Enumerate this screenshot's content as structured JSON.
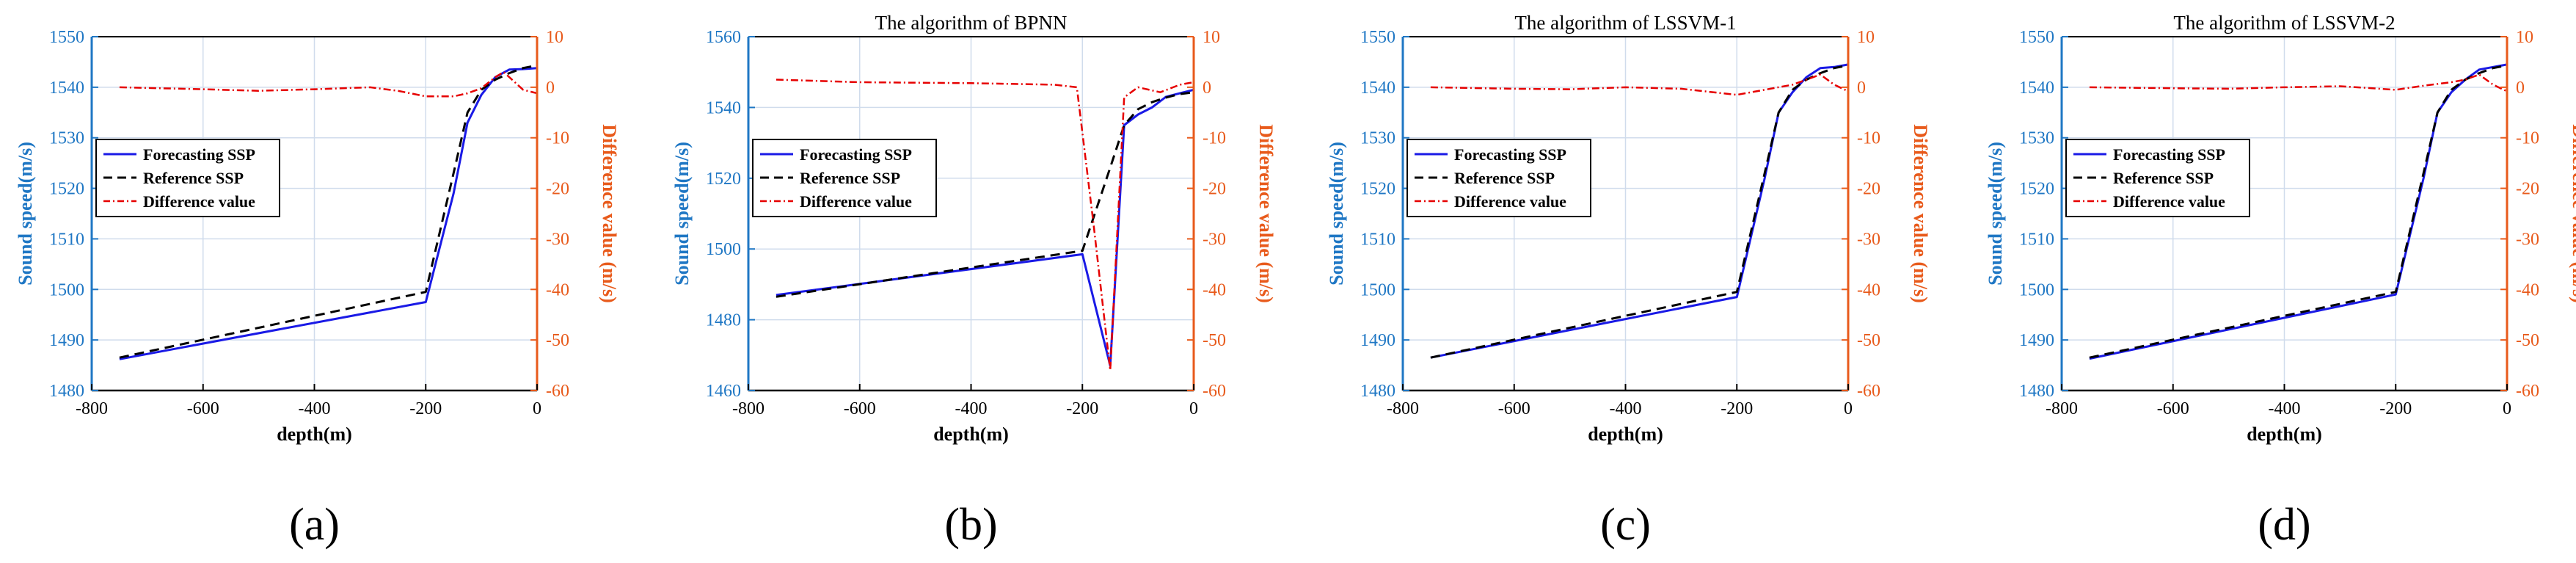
{
  "figure": {
    "colors": {
      "left_axis": "#1f77c4",
      "right_axis": "#e85a1b",
      "forecasting": "#1a1ae6",
      "reference": "#000000",
      "difference": "#e60000",
      "grid": "#d0dcec"
    }
  },
  "chart_data": [
    {
      "type": "line",
      "panel_label": "(a)",
      "title": "",
      "xlabel": "depth(m)",
      "ylabel": "Sound speed(m/s)",
      "y2label": "Difference value (m/s)",
      "xlim": [
        -800,
        0
      ],
      "ylim": [
        1480,
        1550
      ],
      "y2lim": [
        -60,
        10
      ],
      "xticks": [
        -800,
        -600,
        -400,
        -200,
        0
      ],
      "yticks": [
        1480,
        1490,
        1500,
        1510,
        1520,
        1530,
        1540,
        1550
      ],
      "y2ticks": [
        -60,
        -50,
        -40,
        -30,
        -20,
        -10,
        0,
        10
      ],
      "legend_position": "middle-left",
      "series": [
        {
          "name": "Forecasting SSP",
          "axis": "left",
          "style": "solid",
          "x": [
            -750,
            -200,
            -150,
            -125,
            -100,
            -75,
            -50,
            -25,
            0
          ],
          "y": [
            1486.2,
            1497.5,
            1519,
            1533,
            1538.5,
            1542,
            1543.5,
            1543.6,
            1543.8
          ]
        },
        {
          "name": "Reference SSP",
          "axis": "left",
          "style": "dashed",
          "x": [
            -750,
            -200,
            -150,
            -125,
            -100,
            -75,
            -50,
            -25,
            0
          ],
          "y": [
            1486.5,
            1499.5,
            1523,
            1535,
            1539.5,
            1541.5,
            1542.8,
            1543.8,
            1544.3
          ]
        },
        {
          "name": "Difference value",
          "axis": "right",
          "style": "dashdot",
          "x": [
            -750,
            -600,
            -500,
            -400,
            -300,
            -250,
            -200,
            -150,
            -125,
            -100,
            -75,
            -60,
            -50,
            -25,
            0
          ],
          "y": [
            0,
            -0.4,
            -0.7,
            -0.4,
            0,
            -0.7,
            -1.8,
            -1.8,
            -1.2,
            -0.2,
            2,
            3,
            2,
            -0.5,
            -1.2
          ]
        }
      ]
    },
    {
      "type": "line",
      "panel_label": "(b)",
      "title": "The algorithm of BPNN",
      "xlabel": "depth(m)",
      "ylabel": "Sound speed(m/s)",
      "y2label": "Difference value (m/s)",
      "xlim": [
        -800,
        0
      ],
      "ylim": [
        1460,
        1560
      ],
      "y2lim": [
        -60,
        10
      ],
      "xticks": [
        -800,
        -600,
        -400,
        -200,
        0
      ],
      "yticks": [
        1460,
        1480,
        1500,
        1520,
        1540,
        1560
      ],
      "y2ticks": [
        -60,
        -50,
        -40,
        -30,
        -20,
        -10,
        0,
        10
      ],
      "legend_position": "middle-left",
      "series": [
        {
          "name": "Forecasting SSP",
          "axis": "left",
          "style": "solid",
          "x": [
            -750,
            -200,
            -150,
            -125,
            -100,
            -75,
            -50,
            -25,
            0
          ],
          "y": [
            1487,
            1498.5,
            1467,
            1535,
            1538,
            1540,
            1543,
            1544,
            1545
          ]
        },
        {
          "name": "Reference SSP",
          "axis": "left",
          "style": "dashed",
          "x": [
            -750,
            -200,
            -150,
            -125,
            -100,
            -75,
            -50,
            -25,
            0
          ],
          "y": [
            1486.5,
            1499.5,
            1523,
            1535,
            1539.5,
            1541.5,
            1542.8,
            1543.8,
            1544.3
          ]
        },
        {
          "name": "Difference value",
          "axis": "right",
          "style": "dashdot",
          "x": [
            -750,
            -600,
            -400,
            -250,
            -210,
            -180,
            -150,
            -125,
            -100,
            -60,
            -25,
            0
          ],
          "y": [
            1.5,
            1,
            0.8,
            0.5,
            0,
            -27,
            -56,
            -2,
            0,
            -1,
            0.5,
            1
          ]
        }
      ]
    },
    {
      "type": "line",
      "panel_label": "(c)",
      "title": "The algorithm of LSSVM-1",
      "xlabel": "depth(m)",
      "ylabel": "Sound speed(m/s)",
      "y2label": "Difference value (m/s)",
      "xlim": [
        -800,
        0
      ],
      "ylim": [
        1480,
        1550
      ],
      "y2lim": [
        -60,
        10
      ],
      "xticks": [
        -800,
        -600,
        -400,
        -200,
        0
      ],
      "yticks": [
        1480,
        1490,
        1500,
        1510,
        1520,
        1530,
        1540,
        1550
      ],
      "y2ticks": [
        -60,
        -50,
        -40,
        -30,
        -20,
        -10,
        0,
        10
      ],
      "legend_position": "middle-left",
      "series": [
        {
          "name": "Forecasting SSP",
          "axis": "left",
          "style": "solid",
          "x": [
            -750,
            -200,
            -150,
            -125,
            -100,
            -75,
            -50,
            -25,
            0
          ],
          "y": [
            1486.5,
            1498.5,
            1522,
            1535,
            1539,
            1542,
            1543.8,
            1544,
            1544.5
          ]
        },
        {
          "name": "Reference SSP",
          "axis": "left",
          "style": "dashed",
          "x": [
            -750,
            -200,
            -150,
            -125,
            -100,
            -75,
            -50,
            -25,
            0
          ],
          "y": [
            1486.5,
            1499.5,
            1523,
            1535,
            1539.5,
            1541.5,
            1542.8,
            1543.8,
            1544.3
          ]
        },
        {
          "name": "Difference value",
          "axis": "right",
          "style": "dashdot",
          "x": [
            -750,
            -600,
            -500,
            -400,
            -300,
            -200,
            -150,
            -100,
            -75,
            -50,
            -25,
            0
          ],
          "y": [
            0,
            -0.3,
            -0.4,
            0,
            -0.3,
            -1.5,
            -0.5,
            0.5,
            1.5,
            2.5,
            0.5,
            -0.8
          ]
        }
      ]
    },
    {
      "type": "line",
      "panel_label": "(d)",
      "title": "The algorithm of LSSVM-2",
      "xlabel": "depth(m)",
      "ylabel": "Sound speed(m/s)",
      "y2label": "Difference value (m/s)",
      "xlim": [
        -800,
        0
      ],
      "ylim": [
        1480,
        1550
      ],
      "y2lim": [
        -60,
        10
      ],
      "xticks": [
        -800,
        -600,
        -400,
        -200,
        0
      ],
      "yticks": [
        1480,
        1490,
        1500,
        1510,
        1520,
        1530,
        1540,
        1550
      ],
      "y2ticks": [
        -60,
        -50,
        -40,
        -30,
        -20,
        -10,
        0,
        10
      ],
      "legend_position": "middle-left",
      "series": [
        {
          "name": "Forecasting SSP",
          "axis": "left",
          "style": "solid",
          "x": [
            -750,
            -200,
            -150,
            -125,
            -100,
            -75,
            -50,
            -25,
            0
          ],
          "y": [
            1486.3,
            1499,
            1522,
            1535,
            1539,
            1541.5,
            1543.5,
            1544,
            1544.5
          ]
        },
        {
          "name": "Reference SSP",
          "axis": "left",
          "style": "dashed",
          "x": [
            -750,
            -200,
            -150,
            -125,
            -100,
            -75,
            -50,
            -25,
            0
          ],
          "y": [
            1486.5,
            1499.5,
            1523,
            1535,
            1539.5,
            1541.5,
            1542.8,
            1543.8,
            1544.3
          ]
        },
        {
          "name": "Difference value",
          "axis": "right",
          "style": "dashdot",
          "x": [
            -750,
            -600,
            -500,
            -400,
            -300,
            -200,
            -150,
            -100,
            -75,
            -50,
            -25,
            0
          ],
          "y": [
            0,
            -0.2,
            -0.3,
            0,
            0.2,
            -0.5,
            0.3,
            1,
            1.5,
            2.5,
            0.5,
            -0.8
          ]
        }
      ]
    }
  ]
}
